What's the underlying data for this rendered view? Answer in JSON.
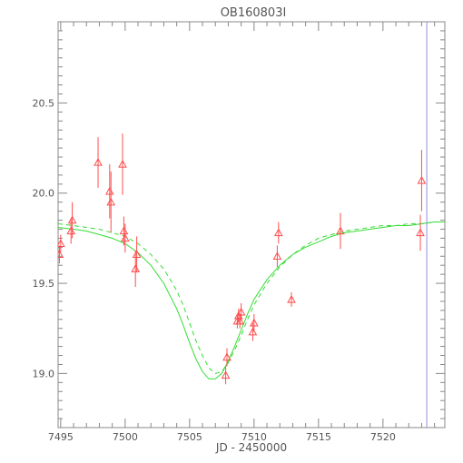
{
  "chart_data": {
    "type": "scatter",
    "title": "OB160803I",
    "xlabel": "JD - 2450000",
    "ylabel": "",
    "xlim": [
      7494.8,
      7524.8
    ],
    "ylim": [
      20.95,
      18.7
    ],
    "y_inverted": true,
    "x_ticks": [
      7495,
      7500,
      7505,
      7510,
      7515,
      7520
    ],
    "y_ticks": [
      19.0,
      19.5,
      20.0,
      20.5
    ],
    "x_tick_labels": [
      "7495",
      "7500",
      "7505",
      "7510",
      "7515",
      "7520"
    ],
    "y_tick_labels": [
      "19.0",
      "19.5",
      "20.0",
      "20.5"
    ],
    "grid": false,
    "legend": "none",
    "vertical_line": {
      "x": 7523.4,
      "color": "#8f8fe0"
    },
    "colors": {
      "points": "#ff4d4d",
      "model": "#33dd33",
      "axes": "#888888",
      "text": "#555555"
    },
    "points": [
      {
        "x": 7494.9,
        "y": 19.66,
        "err": 0.05
      },
      {
        "x": 7495.0,
        "y": 19.72,
        "err": 0.05
      },
      {
        "x": 7495.8,
        "y": 19.79,
        "err": 0.07
      },
      {
        "x": 7495.9,
        "y": 19.85,
        "err": 0.1
      },
      {
        "x": 7497.9,
        "y": 20.17,
        "err": 0.14
      },
      {
        "x": 7498.8,
        "y": 20.01,
        "err": 0.15
      },
      {
        "x": 7498.9,
        "y": 19.95,
        "err": 0.17
      },
      {
        "x": 7499.8,
        "y": 20.16,
        "err": 0.17
      },
      {
        "x": 7499.9,
        "y": 19.79,
        "err": 0.08
      },
      {
        "x": 7500.0,
        "y": 19.75,
        "err": 0.08
      },
      {
        "x": 7500.8,
        "y": 19.58,
        "err": 0.1
      },
      {
        "x": 7500.9,
        "y": 19.66,
        "err": 0.1
      },
      {
        "x": 7507.8,
        "y": 18.99,
        "err": 0.05
      },
      {
        "x": 7507.9,
        "y": 19.09,
        "err": 0.05
      },
      {
        "x": 7508.7,
        "y": 19.29,
        "err": 0.04
      },
      {
        "x": 7508.8,
        "y": 19.32,
        "err": 0.04
      },
      {
        "x": 7508.9,
        "y": 19.29,
        "err": 0.04
      },
      {
        "x": 7509.0,
        "y": 19.34,
        "err": 0.05
      },
      {
        "x": 7509.9,
        "y": 19.23,
        "err": 0.05
      },
      {
        "x": 7510.0,
        "y": 19.28,
        "err": 0.05
      },
      {
        "x": 7511.8,
        "y": 19.65,
        "err": 0.06
      },
      {
        "x": 7511.9,
        "y": 19.78,
        "err": 0.06
      },
      {
        "x": 7512.9,
        "y": 19.41,
        "err": 0.04
      },
      {
        "x": 7516.7,
        "y": 19.79,
        "err": 0.1
      },
      {
        "x": 7522.9,
        "y": 19.78,
        "err": 0.1
      },
      {
        "x": 7523.0,
        "y": 20.07,
        "err": 0.17
      }
    ],
    "series": [
      {
        "style": "solid",
        "x": [
          7494.8,
          7496,
          7497,
          7498,
          7499,
          7500,
          7501,
          7502,
          7503,
          7504,
          7504.5,
          7505,
          7505.5,
          7506,
          7506.5,
          7507,
          7507.5,
          7508,
          7508.5,
          7509,
          7509.5,
          7510,
          7511,
          7512,
          7513,
          7514,
          7515,
          7516,
          7517,
          7518,
          7519,
          7520,
          7521,
          7522,
          7523,
          7524,
          7524.8
        ],
        "y": [
          19.81,
          19.8,
          19.79,
          19.77,
          19.75,
          19.72,
          19.67,
          19.6,
          19.5,
          19.36,
          19.27,
          19.17,
          19.08,
          19.01,
          18.97,
          18.97,
          19.0,
          19.07,
          19.15,
          19.24,
          19.33,
          19.41,
          19.52,
          19.6,
          19.66,
          19.7,
          19.73,
          19.76,
          19.78,
          19.79,
          19.8,
          19.81,
          19.82,
          19.82,
          19.83,
          19.84,
          19.84
        ]
      },
      {
        "style": "dashed",
        "x": [
          7494.8,
          7496,
          7497,
          7498,
          7499,
          7500,
          7501,
          7502,
          7503,
          7504,
          7504.5,
          7505,
          7505.5,
          7506,
          7506.5,
          7507,
          7507.5,
          7508,
          7508.5,
          7509,
          7509.5,
          7510,
          7511,
          7512,
          7513,
          7514,
          7515,
          7516,
          7517,
          7518,
          7519,
          7520,
          7521,
          7522,
          7523,
          7524,
          7524.8
        ],
        "y": [
          19.83,
          19.82,
          19.81,
          19.8,
          19.78,
          19.76,
          19.72,
          19.66,
          19.58,
          19.46,
          19.38,
          19.28,
          19.18,
          19.1,
          19.03,
          19.0,
          19.01,
          19.06,
          19.13,
          19.21,
          19.3,
          19.38,
          19.5,
          19.59,
          19.66,
          19.71,
          19.75,
          19.77,
          19.79,
          19.8,
          19.81,
          19.82,
          19.82,
          19.83,
          19.83,
          19.84,
          19.84
        ]
      }
    ]
  }
}
